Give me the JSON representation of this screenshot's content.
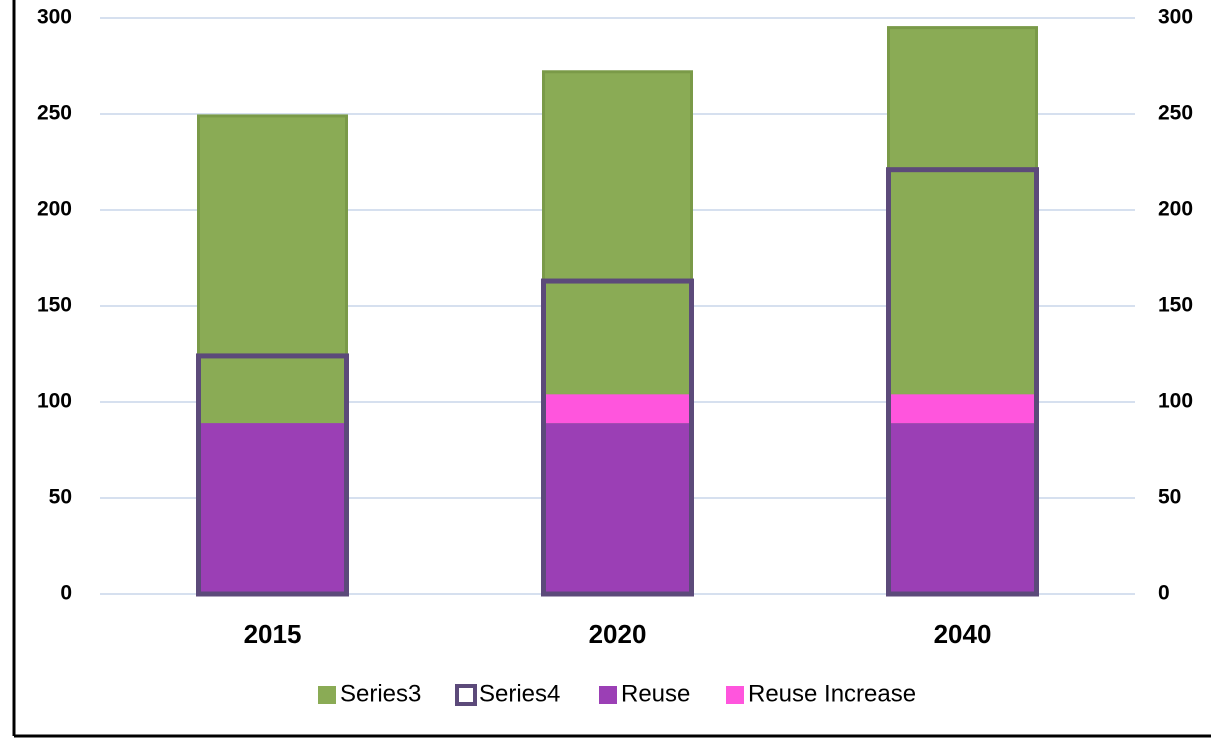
{
  "chart_data": {
    "type": "bar",
    "categories": [
      "2015",
      "2020",
      "2040"
    ],
    "stacked": true,
    "series": [
      {
        "name": "Series3",
        "color": "#8aab55",
        "axis": "y2",
        "values": [
          249,
          272,
          295
        ]
      },
      {
        "name": "Series4",
        "color": "#5c4a7a",
        "axis": "y2",
        "style": "outline",
        "values": [
          124,
          163,
          221
        ]
      },
      {
        "name": "Reuse",
        "color": "#9b3fb5",
        "values": [
          89,
          89,
          89
        ]
      },
      {
        "name": "Reuse Increase",
        "color": "#ff55dd",
        "values": [
          0,
          15,
          15
        ]
      }
    ],
    "ylim": [
      0,
      300
    ],
    "yticks": [
      0,
      50,
      100,
      150,
      200,
      250,
      300
    ],
    "y2lim": [
      0,
      300
    ],
    "y2ticks": [
      0,
      50,
      100,
      150,
      200,
      250,
      300
    ],
    "grid": true,
    "legend": "bottom"
  }
}
